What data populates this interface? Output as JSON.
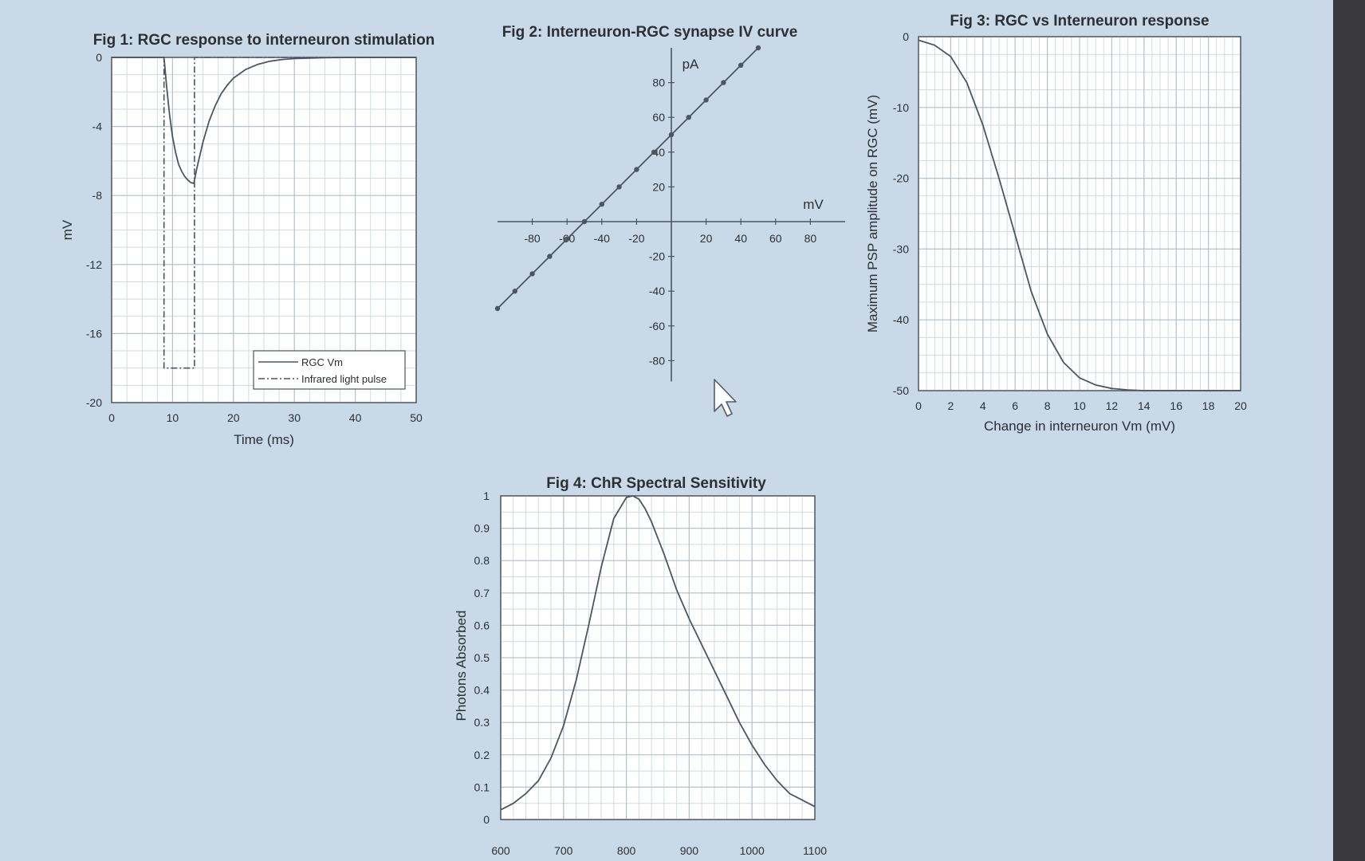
{
  "charts": [
    {
      "title": "Fig 1: RGC response to interneuron stimulation",
      "xlabel": "Time (ms)",
      "ylabel": "mV",
      "xticks": [
        "0",
        "10",
        "20",
        "30",
        "40",
        "50"
      ],
      "yticks": [
        "0",
        "-4",
        "-8",
        "-12",
        "-16",
        "-20"
      ],
      "legend": [
        "RGC Vm",
        "Infrared light pulse"
      ]
    },
    {
      "title": "Fig 2: Interneuron-RGC synapse IV curve",
      "xlabel": "mV",
      "ylabel": "pA",
      "xticks": [
        "-80",
        "-60",
        "-40",
        "-20",
        "20",
        "40",
        "60",
        "80"
      ],
      "yticks": [
        "80",
        "60",
        "40",
        "20",
        "-20",
        "-40",
        "-60",
        "-80"
      ]
    },
    {
      "title": "Fig 3: RGC vs Interneuron response",
      "xlabel": "Change in interneuron Vm (mV)",
      "ylabel": "Maximum PSP amplitude on RGC (mV)",
      "xticks": [
        "0",
        "2",
        "4",
        "6",
        "8",
        "10",
        "12",
        "14",
        "16",
        "18",
        "20"
      ],
      "yticks": [
        "0",
        "-10",
        "-20",
        "-30",
        "-40",
        "-50"
      ]
    },
    {
      "title": "Fig 4: ChR Spectral Sensitivity",
      "xlabel": "",
      "ylabel": "Photons Absorbed",
      "xticks": [
        "600",
        "700",
        "800",
        "900",
        "1000",
        "1100"
      ],
      "yticks": [
        "0",
        "0.1",
        "0.2",
        "0.3",
        "0.4",
        "0.5",
        "0.6",
        "0.7",
        "0.8",
        "0.9",
        "1"
      ]
    }
  ],
  "chart_data": [
    {
      "type": "line",
      "title": "Fig 1: RGC response to interneuron stimulation",
      "xlabel": "Time (ms)",
      "ylabel": "mV",
      "xlim": [
        0,
        50
      ],
      "ylim": [
        -20,
        0
      ],
      "grid": true,
      "legend_position": "bottom-right",
      "series": [
        {
          "name": "RGC Vm",
          "style": "solid",
          "x": [
            0,
            8,
            8.6,
            9,
            9.5,
            10,
            10.5,
            11,
            11.5,
            12,
            12.5,
            13,
            13.5,
            14,
            15,
            16,
            17,
            18,
            19,
            20,
            22,
            24,
            26,
            28,
            30,
            35,
            40,
            45,
            50
          ],
          "y": [
            0,
            0,
            0,
            -1.6,
            -3.3,
            -4.6,
            -5.5,
            -6.2,
            -6.6,
            -6.9,
            -7.1,
            -7.25,
            -7.3,
            -6.4,
            -4.9,
            -3.7,
            -2.8,
            -2.1,
            -1.6,
            -1.2,
            -0.7,
            -0.4,
            -0.22,
            -0.12,
            -0.07,
            -0.02,
            0,
            0,
            0
          ]
        },
        {
          "name": "Infrared light pulse",
          "style": "dash-dot",
          "x": [
            0,
            8.6,
            8.6,
            13.6,
            13.6,
            50
          ],
          "y": [
            0,
            0,
            -18,
            -18,
            0,
            0
          ]
        }
      ]
    },
    {
      "type": "line",
      "title": "Fig 2: Interneuron-RGC synapse IV curve",
      "xlabel": "mV",
      "ylabel": "pA",
      "xlim": [
        -100,
        100
      ],
      "ylim": [
        -100,
        100
      ],
      "grid": false,
      "series": [
        {
          "markers": true,
          "x": [
            -100,
            -90,
            -80,
            -70,
            -60,
            -50,
            -40,
            -30,
            -20,
            -10,
            0,
            10,
            20,
            30,
            40,
            50
          ],
          "y": [
            -50,
            -40,
            -30,
            -20,
            -10,
            0,
            10,
            20,
            30,
            40,
            50,
            60,
            70,
            80,
            90,
            100
          ]
        }
      ]
    },
    {
      "type": "line",
      "title": "Fig 3: RGC vs Interneuron response",
      "xlabel": "Change in interneuron Vm (mV)",
      "ylabel": "Maximum PSP amplitude on RGC (mV)",
      "xlim": [
        0,
        20
      ],
      "ylim": [
        -50,
        0
      ],
      "grid": true,
      "series": [
        {
          "x": [
            0,
            1,
            2,
            3,
            4,
            5,
            6,
            7,
            8,
            9,
            10,
            11,
            12,
            13,
            14,
            15,
            16,
            17,
            18,
            19,
            20
          ],
          "y": [
            -0.5,
            -1.2,
            -2.8,
            -6.5,
            -12.5,
            -20,
            -28,
            -36,
            -42,
            -46,
            -48.2,
            -49.2,
            -49.7,
            -49.9,
            -50,
            -50,
            -50,
            -50,
            -50,
            -50,
            -50
          ]
        }
      ]
    },
    {
      "type": "line",
      "title": "Fig 4: ChR Spectral Sensitivity",
      "xlabel": "",
      "ylabel": "Photons Absorbed",
      "xlim": [
        600,
        1100
      ],
      "ylim": [
        0,
        1
      ],
      "grid": true,
      "series": [
        {
          "x": [
            600,
            620,
            640,
            660,
            680,
            700,
            720,
            740,
            760,
            780,
            800,
            810,
            820,
            830,
            840,
            860,
            880,
            900,
            920,
            940,
            960,
            980,
            1000,
            1020,
            1040,
            1060,
            1080,
            1100
          ],
          "y": [
            0.03,
            0.05,
            0.08,
            0.12,
            0.19,
            0.29,
            0.43,
            0.6,
            0.78,
            0.93,
            0.995,
            1.0,
            0.99,
            0.96,
            0.92,
            0.82,
            0.71,
            0.62,
            0.54,
            0.46,
            0.38,
            0.3,
            0.23,
            0.17,
            0.12,
            0.08,
            0.06,
            0.04
          ]
        }
      ]
    }
  ]
}
